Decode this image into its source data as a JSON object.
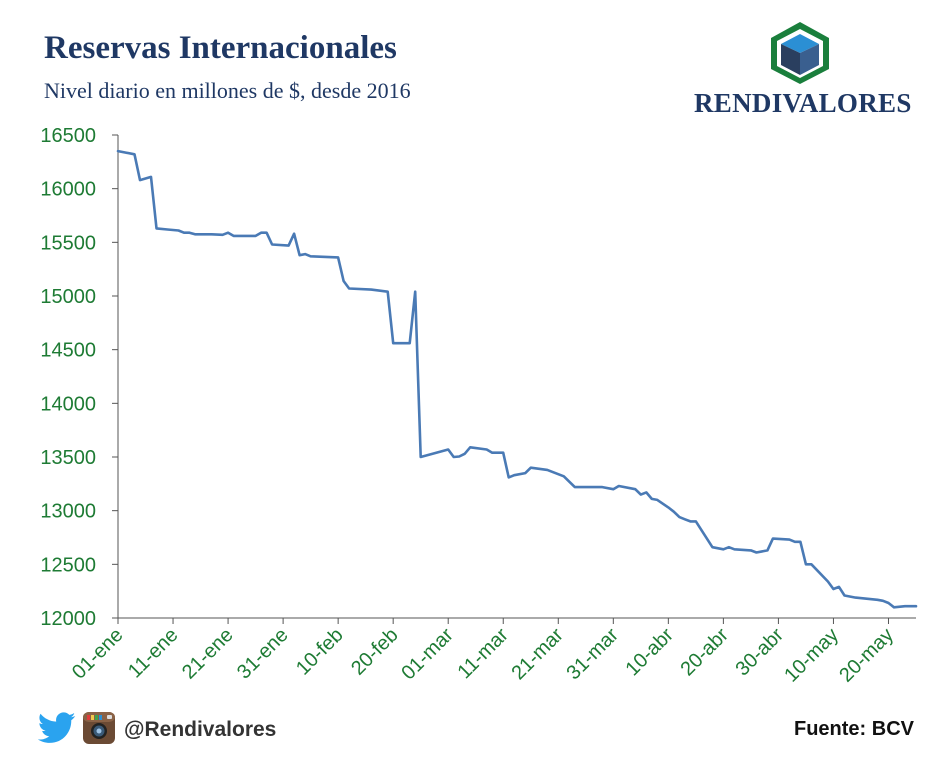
{
  "header": {
    "title": "Reservas Internacionales",
    "subtitle": "Nivel diario en millones de $, desde 2016",
    "brand": "RENDIVALORES"
  },
  "footer": {
    "handle": "@Rendivalores",
    "source": "Fuente: BCV"
  },
  "icons": {
    "twitter": "twitter-icon",
    "instagram": "instagram-icon",
    "logo": "rendivalores-logo-icon"
  },
  "colors": {
    "line": "#4a7ab5",
    "ticks": "#1e7b34",
    "title": "#1f3864",
    "axis": "#555555",
    "logo_green": "#1a7f3c",
    "logo_blue": "#2b8fd4",
    "logo_dark": "#1f3864"
  },
  "chart_data": {
    "type": "line",
    "title": "Reservas Internacionales",
    "subtitle": "Nivel diario en millones de $, desde 2016",
    "xlabel": "",
    "ylabel": "",
    "ylim": [
      12000,
      16500
    ],
    "xlim": [
      0,
      145
    ],
    "yticks": [
      16500,
      16000,
      15500,
      15000,
      14500,
      14000,
      13500,
      13000,
      12500,
      12000
    ],
    "xticks": [
      {
        "day": 0,
        "label": "01-ene"
      },
      {
        "day": 10,
        "label": "11-ene"
      },
      {
        "day": 20,
        "label": "21-ene"
      },
      {
        "day": 30,
        "label": "31-ene"
      },
      {
        "day": 40,
        "label": "10-feb"
      },
      {
        "day": 50,
        "label": "20-feb"
      },
      {
        "day": 60,
        "label": "01-mar"
      },
      {
        "day": 70,
        "label": "11-mar"
      },
      {
        "day": 80,
        "label": "21-mar"
      },
      {
        "day": 90,
        "label": "31-mar"
      },
      {
        "day": 100,
        "label": "10-abr"
      },
      {
        "day": 110,
        "label": "20-abr"
      },
      {
        "day": 120,
        "label": "30-abr"
      },
      {
        "day": 130,
        "label": "10-may"
      },
      {
        "day": 140,
        "label": "20-may"
      }
    ],
    "series": [
      {
        "name": "Reservas",
        "points": [
          [
            0,
            16350
          ],
          [
            3,
            16320
          ],
          [
            4,
            16080
          ],
          [
            6,
            16110
          ],
          [
            7,
            15630
          ],
          [
            9,
            15620
          ],
          [
            11,
            15610
          ],
          [
            12,
            15590
          ],
          [
            13,
            15590
          ],
          [
            14,
            15575
          ],
          [
            17,
            15575
          ],
          [
            19,
            15570
          ],
          [
            20,
            15590
          ],
          [
            21,
            15560
          ],
          [
            25,
            15560
          ],
          [
            26,
            15590
          ],
          [
            27,
            15590
          ],
          [
            28,
            15480
          ],
          [
            31,
            15470
          ],
          [
            32,
            15580
          ],
          [
            33,
            15380
          ],
          [
            34,
            15390
          ],
          [
            35,
            15370
          ],
          [
            40,
            15360
          ],
          [
            41,
            15140
          ],
          [
            42,
            15070
          ],
          [
            46,
            15060
          ],
          [
            49,
            15040
          ],
          [
            50,
            14560
          ],
          [
            53,
            14560
          ],
          [
            54,
            15040
          ],
          [
            55,
            13500
          ],
          [
            60,
            13570
          ],
          [
            61,
            13500
          ],
          [
            62,
            13505
          ],
          [
            63,
            13530
          ],
          [
            64,
            13590
          ],
          [
            67,
            13570
          ],
          [
            68,
            13540
          ],
          [
            70,
            13540
          ],
          [
            71,
            13310
          ],
          [
            72,
            13330
          ],
          [
            74,
            13350
          ],
          [
            75,
            13400
          ],
          [
            78,
            13380
          ],
          [
            80,
            13340
          ],
          [
            81,
            13320
          ],
          [
            82,
            13270
          ],
          [
            83,
            13220
          ],
          [
            88,
            13220
          ],
          [
            90,
            13200
          ],
          [
            91,
            13230
          ],
          [
            94,
            13200
          ],
          [
            95,
            13150
          ],
          [
            96,
            13170
          ],
          [
            97,
            13110
          ],
          [
            98,
            13100
          ],
          [
            100,
            13030
          ],
          [
            101,
            12990
          ],
          [
            102,
            12940
          ],
          [
            103,
            12920
          ],
          [
            104,
            12900
          ],
          [
            105,
            12900
          ],
          [
            108,
            12660
          ],
          [
            110,
            12640
          ],
          [
            111,
            12660
          ],
          [
            112,
            12640
          ],
          [
            115,
            12630
          ],
          [
            116,
            12610
          ],
          [
            118,
            12630
          ],
          [
            119,
            12740
          ],
          [
            122,
            12730
          ],
          [
            123,
            12710
          ],
          [
            124,
            12710
          ],
          [
            125,
            12500
          ],
          [
            126,
            12500
          ],
          [
            129,
            12340
          ],
          [
            130,
            12270
          ],
          [
            131,
            12290
          ],
          [
            132,
            12210
          ],
          [
            134,
            12190
          ],
          [
            138,
            12170
          ],
          [
            139,
            12160
          ],
          [
            140,
            12140
          ],
          [
            141,
            12100
          ],
          [
            143,
            12110
          ],
          [
            145,
            12110
          ]
        ]
      }
    ]
  }
}
